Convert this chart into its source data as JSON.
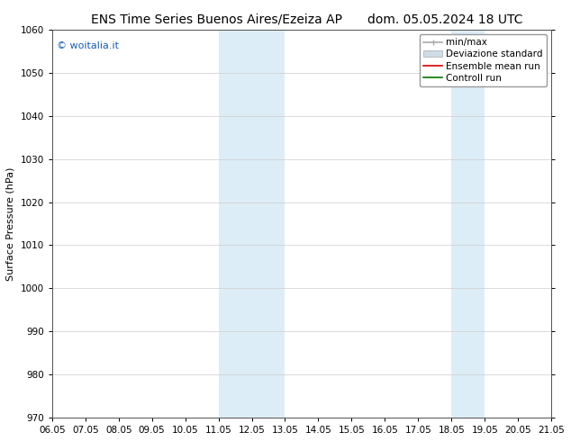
{
  "title_left": "ENS Time Series Buenos Aires/Ezeiza AP",
  "title_right": "dom. 05.05.2024 18 UTC",
  "ylabel": "Surface Pressure (hPa)",
  "ylim": [
    970,
    1060
  ],
  "yticks": [
    970,
    980,
    990,
    1000,
    1010,
    1020,
    1030,
    1040,
    1050,
    1060
  ],
  "xtick_labels": [
    "06.05",
    "07.05",
    "08.05",
    "09.05",
    "10.05",
    "11.05",
    "12.05",
    "13.05",
    "14.05",
    "15.05",
    "16.05",
    "17.05",
    "18.05",
    "19.05",
    "20.05",
    "21.05"
  ],
  "xlim": [
    0,
    15
  ],
  "shaded_bands": [
    {
      "xmin": 5.0,
      "xmax": 6.0,
      "color": "#ddedf7"
    },
    {
      "xmin": 6.0,
      "xmax": 7.0,
      "color": "#ddedf7"
    },
    {
      "xmin": 12.0,
      "xmax": 13.0,
      "color": "#ddedf7"
    }
  ],
  "thin_line_x": 0.0,
  "copyright_text": "© woitalia.it",
  "copyright_color": "#1a5fa8",
  "background_color": "#ffffff",
  "plot_bg_color": "#ffffff",
  "legend_items": [
    {
      "label": "min/max",
      "color": "#aaaaaa",
      "lw": 1.2
    },
    {
      "label": "Deviazione standard",
      "color": "#ccdde8",
      "lw": 8
    },
    {
      "label": "Ensemble mean run",
      "color": "#dd0000",
      "lw": 1.2
    },
    {
      "label": "Controll run",
      "color": "#007700",
      "lw": 1.2
    }
  ],
  "grid_color": "#cccccc",
  "title_fontsize": 10,
  "axis_label_fontsize": 8,
  "tick_fontsize": 7.5,
  "legend_fontsize": 7.5
}
